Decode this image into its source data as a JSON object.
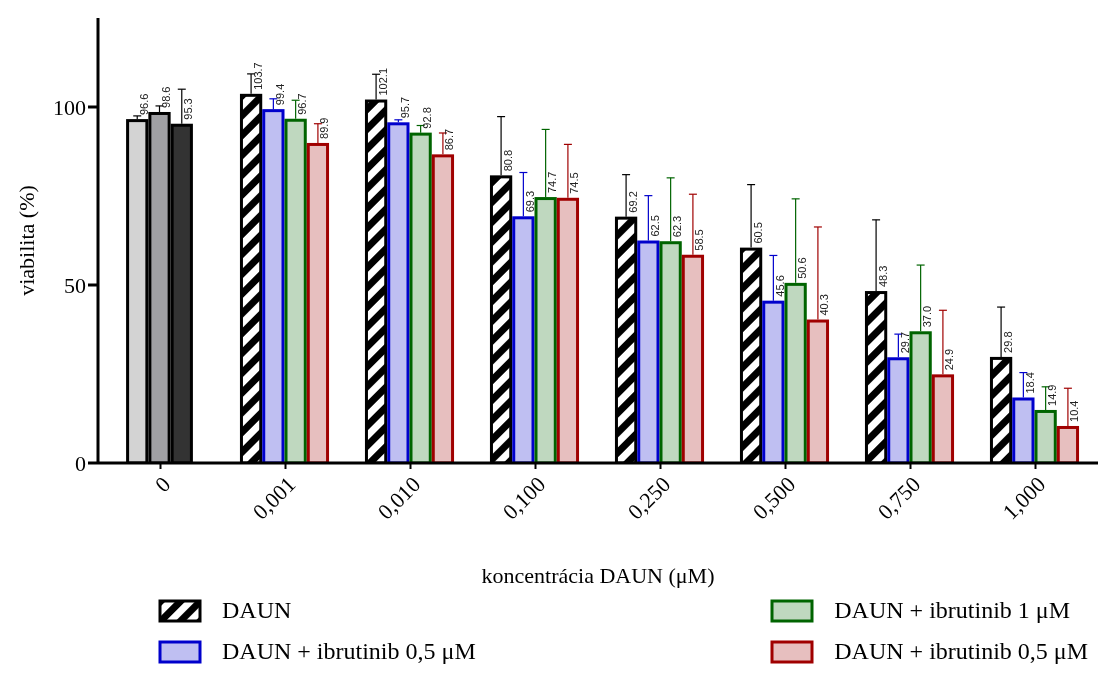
{
  "chart_data": {
    "type": "bar",
    "xlabel": "koncentrácia DAUN (μM)",
    "ylabel": "viabilita (%)",
    "categories": [
      "0",
      "0,001",
      "0,010",
      "0,100",
      "0,250",
      "0,500",
      "0,750",
      "1,000"
    ],
    "ylim": [
      0,
      125
    ],
    "yticks": [
      0,
      50,
      100
    ],
    "legend": "bottom",
    "series": [
      {
        "color": "#d3d3d3",
        "values": [
          96.6,
          null,
          null,
          null,
          null,
          null,
          null,
          null
        ],
        "errors": [
          0.9,
          null,
          null,
          null,
          null,
          null,
          null,
          null
        ],
        "value_labels": [
          "96.6",
          null,
          null,
          null,
          null,
          null,
          null,
          null
        ]
      },
      {
        "color": "#a0a0a4",
        "values": [
          98.6,
          null,
          null,
          null,
          null,
          null,
          null,
          null
        ],
        "errors": [
          1.7,
          null,
          null,
          null,
          null,
          null,
          null,
          null
        ],
        "value_labels": [
          "98.6",
          null,
          null,
          null,
          null,
          null,
          null,
          null
        ]
      },
      {
        "color": "#333333",
        "values": [
          95.3,
          null,
          null,
          null,
          null,
          null,
          null,
          null
        ],
        "errors": [
          9.7,
          null,
          null,
          null,
          null,
          null,
          null,
          null
        ],
        "value_labels": [
          "95.3",
          null,
          null,
          null,
          null,
          null,
          null,
          null
        ]
      },
      {
        "name": "DAUN",
        "color": "#000000",
        "values": [
          null,
          103.7,
          102.1,
          80.8,
          69.2,
          60.5,
          48.3,
          29.8
        ],
        "errors": [
          null,
          5.6,
          7.1,
          16.5,
          11.8,
          17.7,
          20,
          14
        ],
        "value_labels": [
          null,
          "103.7",
          "102.1",
          "80.8",
          "69.2",
          "60.5",
          "48.3",
          "29.8"
        ]
      },
      {
        "name": "DAUN + ibrutinib 0,5 μM",
        "color": "#0000cc",
        "values": [
          null,
          99.4,
          95.7,
          69.3,
          62.5,
          45.6,
          29.7,
          18.4
        ],
        "errors": [
          null,
          2.9,
          0.7,
          12.3,
          12.6,
          12.7,
          6.5,
          7
        ],
        "value_labels": [
          null,
          "99.4",
          "95.7",
          "69.3",
          "62.5",
          "45.6",
          "29.7",
          "18.4"
        ]
      },
      {
        "name": "DAUN + ibrutinib 1 μM",
        "color": "#006400",
        "values": [
          null,
          96.7,
          92.8,
          74.7,
          62.3,
          50.6,
          37.0,
          14.9
        ],
        "errors": [
          null,
          5.2,
          2,
          19,
          17.8,
          23.6,
          18.6,
          6.5
        ],
        "value_labels": [
          null,
          "96.7",
          "92.8",
          "74.7",
          "62.3",
          "50.6",
          "37.0",
          "14.9"
        ]
      },
      {
        "name": "DAUN + ibrutinib 0,5 μM",
        "color": "#a00000",
        "values": [
          null,
          89.9,
          86.7,
          74.5,
          58.5,
          40.3,
          24.9,
          10.4
        ],
        "errors": [
          null,
          5.4,
          6,
          15,
          17,
          26,
          18,
          10.6
        ],
        "value_labels": [
          null,
          "89.9",
          "86.7",
          "74.5",
          "58.5",
          "40.3",
          "24.9",
          "10.4"
        ]
      }
    ]
  }
}
